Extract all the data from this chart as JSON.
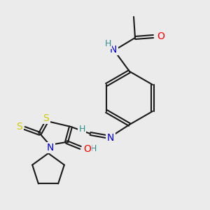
{
  "bg": "#ebebeb",
  "bond_color": "#1a1a1a",
  "bond_lw": 1.5,
  "atom_colors": {
    "N": "#0000cd",
    "O": "#ff0000",
    "S": "#cccc00",
    "H": "#2f8f8f",
    "C": "#1a1a1a"
  },
  "font_size": 9,
  "font_size_small": 8
}
